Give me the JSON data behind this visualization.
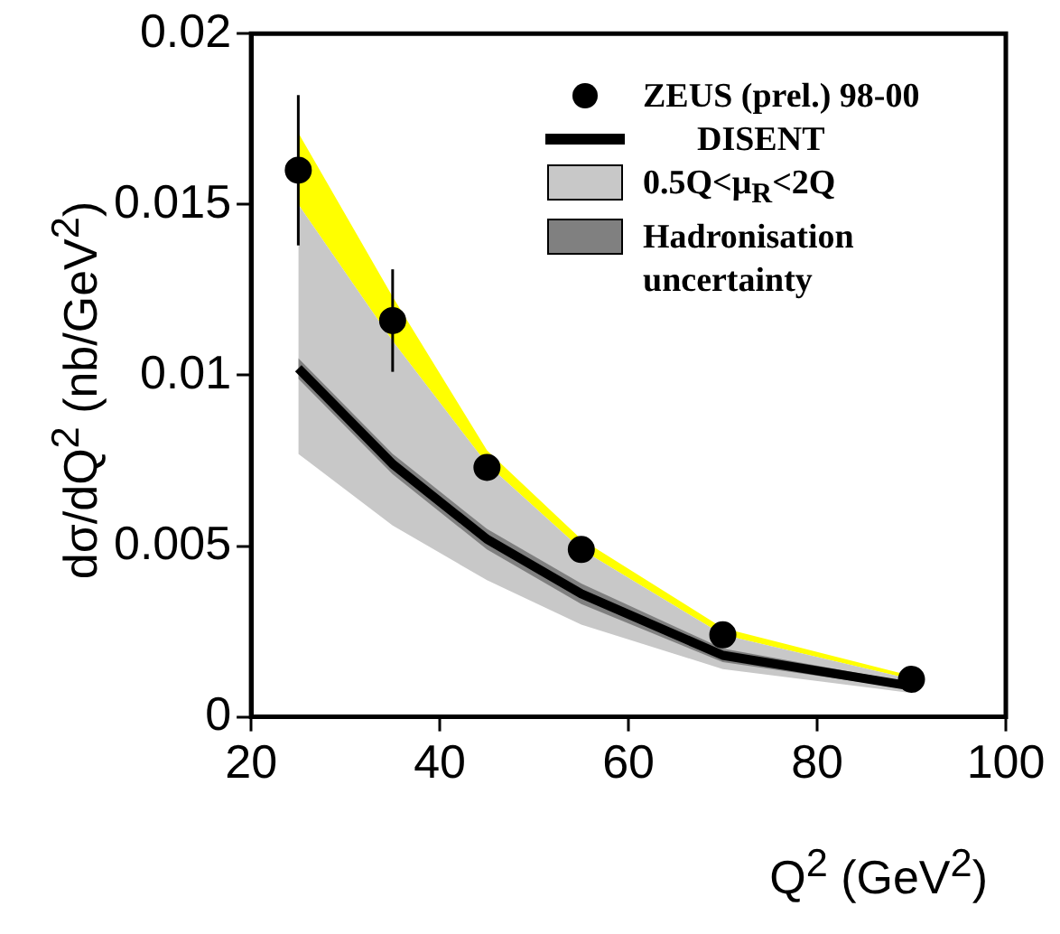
{
  "chart_data": {
    "type": "line",
    "xlabel": "Q$^{2}$ (GeV$^{2}$)",
    "ylabel": "dσ/dQ$^{2}$ (nb/GeV$^{2}$)",
    "xlim": [
      20,
      100
    ],
    "xticks": [
      20,
      40,
      60,
      80,
      100
    ],
    "ylim": [
      0,
      0.02
    ],
    "yticks": [
      0,
      0.005,
      0.01,
      0.015,
      0.02
    ],
    "grid": false,
    "legend": "top right",
    "series": [
      {
        "color": "#ffff00",
        "x": [
          25,
          35,
          45,
          55,
          70,
          90
        ],
        "values": [
          null,
          null,
          null,
          null,
          null,
          null
        ],
        "lower": [
          0.015,
          0.011,
          0.0074,
          0.0049,
          0.0024,
          0.0011
        ],
        "upper": [
          0.0171,
          0.0123,
          0.0078,
          0.0052,
          0.0026,
          0.0012
        ]
      },
      {
        "name": "0.5Q<μ$_{R}$<2Q",
        "color": "#c8c8c8",
        "x": [
          25,
          35,
          45,
          55,
          70,
          90
        ],
        "values": [
          null,
          null,
          null,
          null,
          null,
          null
        ],
        "lower": [
          0.0077,
          0.0056,
          0.004,
          0.0027,
          0.0014,
          0.0007
        ],
        "upper": [
          0.015,
          0.011,
          0.0074,
          0.0049,
          0.0024,
          0.0011
        ]
      },
      {
        "name": "Hadronisation uncertainty",
        "color": "#808080",
        "x": [
          25,
          35,
          45,
          55,
          70,
          90
        ],
        "values": [
          null,
          null,
          null,
          null,
          null,
          null
        ],
        "lower": [
          0.0099,
          0.0071,
          0.0049,
          0.0033,
          0.0016,
          0.0008
        ],
        "upper": [
          0.0105,
          0.0077,
          0.0055,
          0.0039,
          0.002,
          0.001
        ]
      },
      {
        "name": "DISENT",
        "color": "#000000",
        "x": [
          25,
          35,
          45,
          55,
          70,
          90
        ],
        "values": [
          0.0102,
          0.0074,
          0.0052,
          0.0036,
          0.0018,
          0.0009
        ]
      },
      {
        "type": "scatter",
        "name": "ZEUS (prel.) 98-00",
        "color": "#000000",
        "marker": "circle",
        "x": [
          25,
          35,
          45,
          55,
          70,
          90
        ],
        "values": [
          0.016,
          0.0116,
          0.0073,
          0.0049,
          0.0024,
          0.0011
        ],
        "errors": [
          0.0022,
          0.0015,
          null,
          null,
          null,
          null
        ]
      }
    ]
  }
}
